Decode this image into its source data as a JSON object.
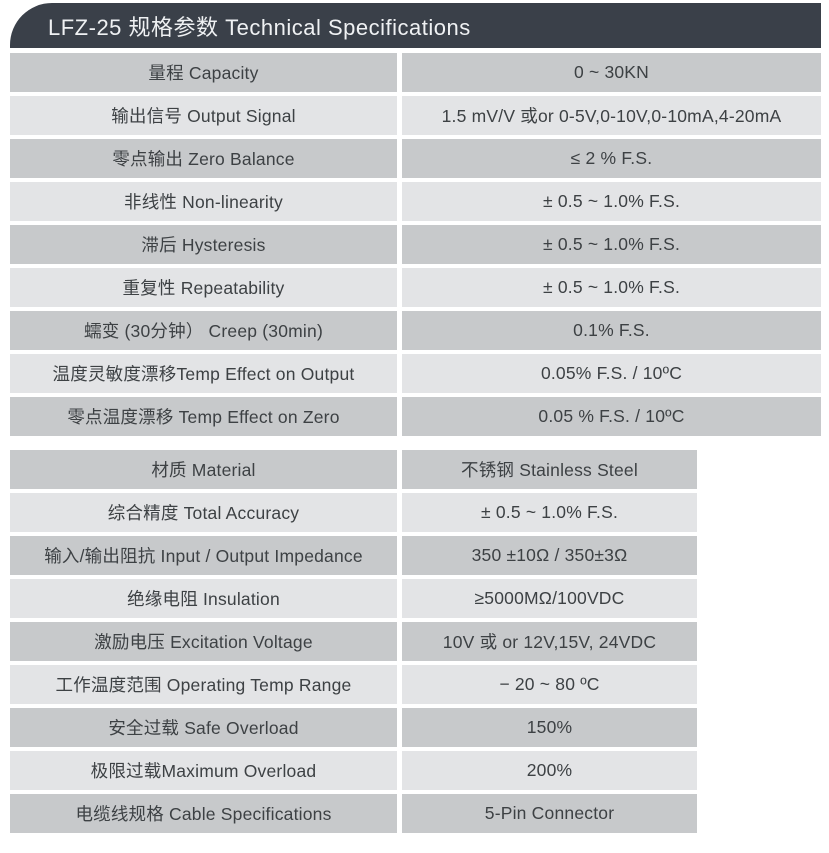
{
  "header": {
    "title": "LFZ-25 规格参数 Technical Specifications"
  },
  "colors": {
    "page_bg": "#ffffff",
    "header_bg": "#3a4049",
    "header_text": "#eff1f3",
    "row_dark": "#c7c9cb",
    "row_light": "#e3e4e6",
    "cell_text": "#3d4144"
  },
  "table": {
    "sections": [
      {
        "rows": [
          {
            "label": "量程 Capacity",
            "value": "0 ~ 30KN"
          },
          {
            "label": "输出信号 Output Signal",
            "value": "1.5 mV/V 或or 0-5V,0-10V,0-10mA,4-20mA"
          },
          {
            "label": "零点输出  Zero Balance",
            "value": "≤ 2 % F.S."
          },
          {
            "label": "非线性 Non-linearity",
            "value": "± 0.5 ~ 1.0% F.S."
          },
          {
            "label": "滞后 Hysteresis",
            "value": "± 0.5 ~ 1.0% F.S."
          },
          {
            "label": "重复性 Repeatability",
            "value": "± 0.5 ~ 1.0% F.S."
          },
          {
            "label": "蠕变 (30分钟） Creep (30min)",
            "value": "0.1% F.S."
          },
          {
            "label": "温度灵敏度漂移Temp Effect on Output",
            "value": "0.05% F.S. / 10ºC"
          },
          {
            "label": "零点温度漂移 Temp Effect on Zero",
            "value": "0.05 % F.S. / 10ºC"
          }
        ]
      },
      {
        "rows": [
          {
            "label": "材质 Material",
            "value": "不锈钢 Stainless Steel"
          },
          {
            "label": "综合精度 Total Accuracy",
            "value": "± 0.5 ~ 1.0% F.S."
          },
          {
            "label": "输入/输出阻抗 Input / Output Impedance",
            "value": "350 ±10Ω / 350±3Ω"
          },
          {
            "label": "绝缘电阻  Insulation",
            "value": "≥5000MΩ/100VDC"
          },
          {
            "label": "激励电压  Excitation Voltage",
            "value": "10V 或 or 12V,15V, 24VDC"
          },
          {
            "label": "工作温度范围 Operating Temp  Range",
            "value": "− 20 ~ 80 ºC"
          },
          {
            "label": "安全过载 Safe Overload",
            "value": "150%"
          },
          {
            "label": "极限过载Maximum Overload",
            "value": "200%"
          },
          {
            "label": "电缆线规格 Cable Specifications",
            "value": "5-Pin Connector"
          }
        ]
      }
    ]
  }
}
